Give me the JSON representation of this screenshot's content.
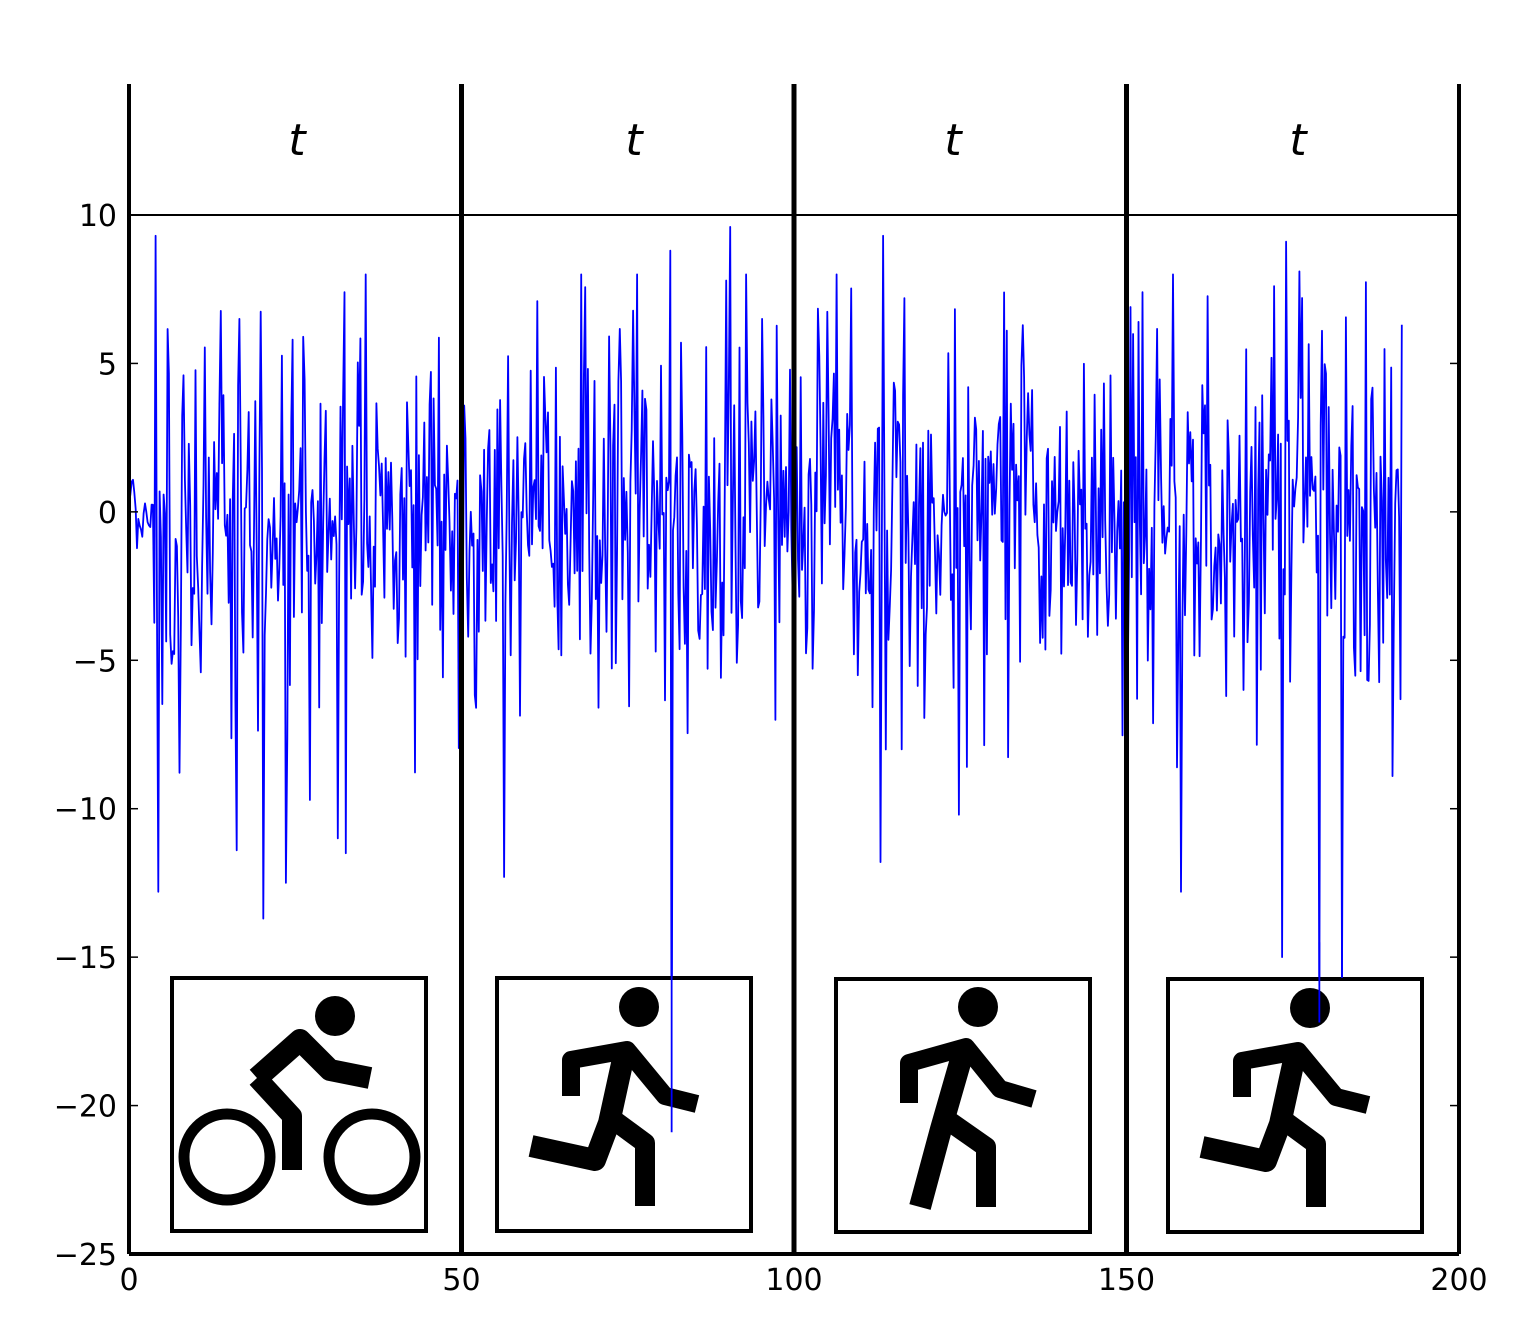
{
  "chart_data": {
    "type": "line",
    "title": "",
    "xlabel": "",
    "ylabel": "",
    "xlim": [
      0,
      200
    ],
    "ylim": [
      -25,
      15
    ],
    "x_ticks": [
      0,
      50,
      100,
      150,
      200
    ],
    "x_tick_labels": [
      "0",
      "50",
      "100",
      "150",
      "200"
    ],
    "y_ticks": [
      10,
      5,
      0,
      -5,
      -10,
      -15,
      -20,
      -25
    ],
    "y_tick_labels": [
      "10",
      "5",
      "0",
      "−5",
      "−10",
      "−15",
      "−20",
      "−25"
    ],
    "grid": false,
    "horizontal_line": 10,
    "segment_boundaries": [
      50,
      100,
      150
    ],
    "segment_label": "t",
    "activities": [
      {
        "range": [
          0,
          50
        ],
        "icon": "cycling-icon"
      },
      {
        "range": [
          50,
          100
        ],
        "icon": "running-icon"
      },
      {
        "range": [
          100,
          150
        ],
        "icon": "walking-icon"
      },
      {
        "range": [
          150,
          200
        ],
        "icon": "running-icon"
      }
    ],
    "series": [
      {
        "color": "#0000ff",
        "x_range": [
          0,
          191.5
        ],
        "spikes": [
          [
            4.1,
            9.3
          ],
          [
            4.4,
            -12.8
          ],
          [
            8.3,
            4.6
          ],
          [
            16.2,
            -11.4
          ],
          [
            16.5,
            6.5
          ],
          [
            20.1,
            -13.7
          ],
          [
            23.5,
            -12.5
          ],
          [
            24.6,
            5.8
          ],
          [
            31.3,
            -11.0
          ],
          [
            32.4,
            7.4
          ],
          [
            32.6,
            -11.5
          ],
          [
            56.4,
            -12.3
          ],
          [
            61.5,
            7.1
          ],
          [
            76.4,
            8.0
          ],
          [
            81.5,
            8.8
          ],
          [
            81.6,
            -20.9
          ],
          [
            83.1,
            5.7
          ],
          [
            90.4,
            9.6
          ],
          [
            95.3,
            6.5
          ],
          [
            113.0,
            -11.8
          ],
          [
            113.5,
            9.3
          ],
          [
            116.6,
            7.2
          ],
          [
            124.8,
            -10.2
          ],
          [
            151.5,
            -6.3
          ],
          [
            151.7,
            6.4
          ],
          [
            158.2,
            -12.8
          ],
          [
            172.2,
            7.6
          ],
          [
            173.4,
            -15.0
          ],
          [
            174.0,
            9.1
          ],
          [
            175.9,
            8.1
          ],
          [
            179.0,
            -17.2
          ],
          [
            179.4,
            6.1
          ],
          [
            182.4,
            -15.7
          ],
          [
            190.0,
            -8.9
          ],
          [
            191.4,
            6.3
          ]
        ]
      }
    ]
  }
}
